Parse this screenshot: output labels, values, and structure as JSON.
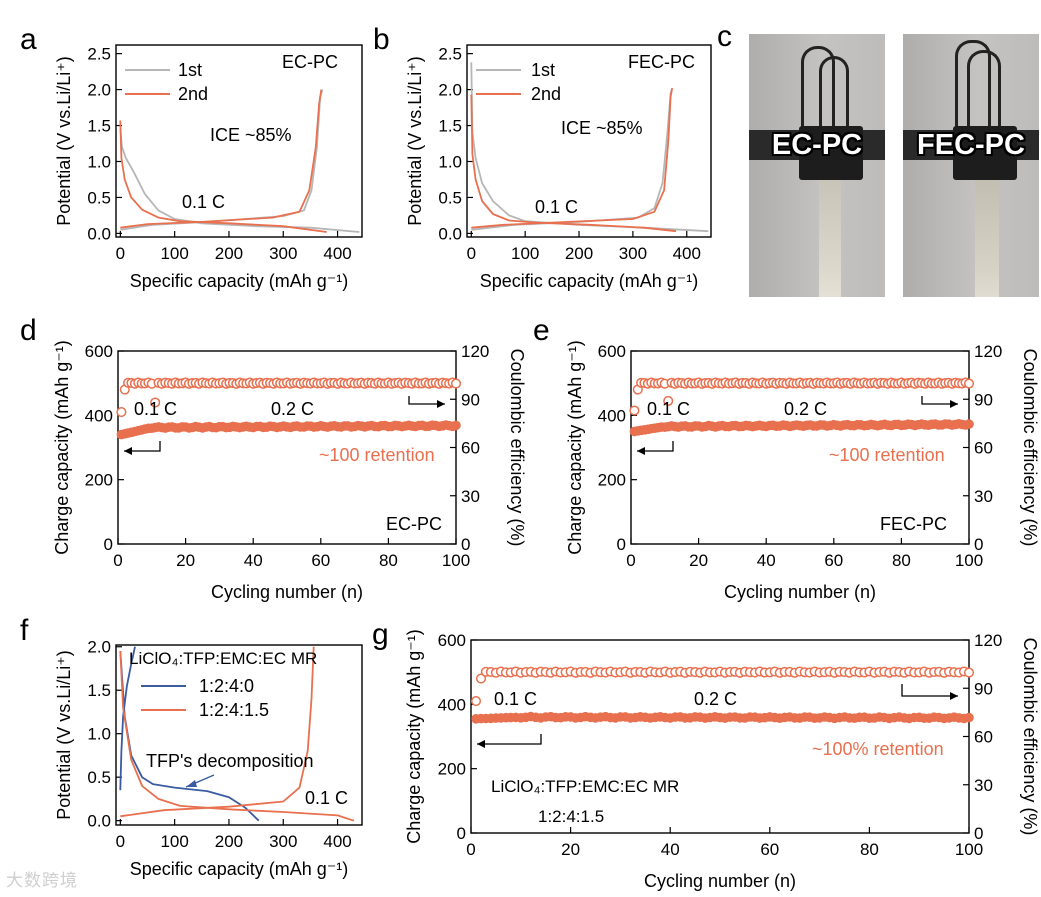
{
  "colors": {
    "orange": "#e8704f",
    "gray": "#b6b6b6",
    "blue": "#3a5ba0",
    "axis": "#000000"
  },
  "panel_labels": {
    "a": "a",
    "b": "b",
    "c": "c",
    "d": "d",
    "e": "e",
    "f": "f",
    "g": "g"
  },
  "photos": {
    "left_label": "EC-PC",
    "right_label": "FEC-PC"
  },
  "watermark": "大数跨境",
  "chart_data": [
    {
      "id": "a",
      "type": "line",
      "xlabel": "Specific capacity (mAh g⁻¹)",
      "ylabel": "Potential (V vs.Li/Li⁺)",
      "xlim": [
        -8,
        445
      ],
      "ylim": [
        -0.05,
        2.62
      ],
      "xticks": [
        0,
        100,
        200,
        300,
        400
      ],
      "yticks": [
        0.0,
        0.5,
        1.0,
        1.5,
        2.0,
        2.5
      ],
      "ytick_labels": [
        "0.0",
        "0.5",
        "1.0",
        "1.5",
        "2.0",
        "2.5"
      ],
      "legend": [
        {
          "name": "1st",
          "color": "#b6b6b6"
        },
        {
          "name": "2nd",
          "color": "#e8704f"
        }
      ],
      "annotations": [
        "EC-PC",
        "ICE  ~85%",
        "0.1 C"
      ],
      "series": [
        {
          "name": "1st discharge",
          "color": "#b6b6b6",
          "points": [
            [
              0,
              1.45
            ],
            [
              3,
              1.2
            ],
            [
              10,
              1.05
            ],
            [
              25,
              0.85
            ],
            [
              45,
              0.55
            ],
            [
              70,
              0.32
            ],
            [
              100,
              0.2
            ],
            [
              150,
              0.14
            ],
            [
              250,
              0.1
            ],
            [
              350,
              0.08
            ],
            [
              440,
              0.02
            ]
          ]
        },
        {
          "name": "1st charge",
          "color": "#b6b6b6",
          "points": [
            [
              0,
              0.05
            ],
            [
              60,
              0.12
            ],
            [
              160,
              0.16
            ],
            [
              300,
              0.24
            ],
            [
              338,
              0.32
            ],
            [
              352,
              0.6
            ],
            [
              362,
              1.2
            ],
            [
              368,
              1.9
            ],
            [
              372,
              2.0
            ]
          ]
        },
        {
          "name": "2nd discharge",
          "color": "#e8704f",
          "points": [
            [
              0,
              1.57
            ],
            [
              2,
              1.05
            ],
            [
              8,
              0.75
            ],
            [
              20,
              0.5
            ],
            [
              40,
              0.33
            ],
            [
              70,
              0.22
            ],
            [
              110,
              0.17
            ],
            [
              200,
              0.14
            ],
            [
              300,
              0.1
            ],
            [
              380,
              0.02
            ]
          ]
        },
        {
          "name": "2nd charge",
          "color": "#e8704f",
          "points": [
            [
              0,
              0.08
            ],
            [
              50,
              0.13
            ],
            [
              150,
              0.16
            ],
            [
              280,
              0.22
            ],
            [
              330,
              0.3
            ],
            [
              348,
              0.6
            ],
            [
              360,
              1.2
            ],
            [
              366,
              1.8
            ],
            [
              370,
              2.0
            ]
          ]
        }
      ]
    },
    {
      "id": "b",
      "type": "line",
      "xlabel": "Specific capacity (mAh g⁻¹)",
      "ylabel": "Potential (V vs.Li/Li⁺)",
      "xlim": [
        -8,
        445
      ],
      "ylim": [
        -0.05,
        2.62
      ],
      "xticks": [
        0,
        100,
        200,
        300,
        400
      ],
      "yticks": [
        0.0,
        0.5,
        1.0,
        1.5,
        2.0,
        2.5
      ],
      "ytick_labels": [
        "0.0",
        "0.5",
        "1.0",
        "1.5",
        "2.0",
        "2.5"
      ],
      "legend": [
        {
          "name": "1st",
          "color": "#b6b6b6"
        },
        {
          "name": "2nd",
          "color": "#e8704f"
        }
      ],
      "annotations": [
        "FEC-PC",
        "ICE  ~85%",
        "0.1 C"
      ],
      "series": [
        {
          "name": "1st discharge",
          "color": "#b6b6b6",
          "points": [
            [
              0,
              2.38
            ],
            [
              2,
              1.4
            ],
            [
              8,
              1.05
            ],
            [
              20,
              0.7
            ],
            [
              40,
              0.45
            ],
            [
              70,
              0.25
            ],
            [
              100,
              0.17
            ],
            [
              200,
              0.12
            ],
            [
              320,
              0.08
            ],
            [
              440,
              0.03
            ]
          ]
        },
        {
          "name": "1st charge",
          "color": "#b6b6b6",
          "points": [
            [
              0,
              0.05
            ],
            [
              80,
              0.12
            ],
            [
              200,
              0.16
            ],
            [
              310,
              0.22
            ],
            [
              340,
              0.35
            ],
            [
              355,
              0.7
            ],
            [
              364,
              1.4
            ],
            [
              370,
              1.95
            ],
            [
              372,
              2.0
            ]
          ]
        },
        {
          "name": "2nd discharge",
          "color": "#e8704f",
          "points": [
            [
              0,
              1.93
            ],
            [
              2,
              1.1
            ],
            [
              8,
              0.75
            ],
            [
              20,
              0.45
            ],
            [
              40,
              0.27
            ],
            [
              70,
              0.18
            ],
            [
              120,
              0.15
            ],
            [
              220,
              0.12
            ],
            [
              320,
              0.08
            ],
            [
              380,
              0.03
            ]
          ]
        },
        {
          "name": "2nd charge",
          "color": "#e8704f",
          "points": [
            [
              0,
              0.08
            ],
            [
              60,
              0.12
            ],
            [
              180,
              0.16
            ],
            [
              300,
              0.2
            ],
            [
              340,
              0.3
            ],
            [
              358,
              0.6
            ],
            [
              366,
              1.3
            ],
            [
              370,
              1.9
            ],
            [
              373,
              2.02
            ]
          ]
        }
      ]
    },
    {
      "id": "d",
      "type": "scatter",
      "xlabel": "Cycling number (n)",
      "ylabel": "Charge capacity (mAh g⁻¹)",
      "y2label": "Coulombic efficiency (%)",
      "xlim": [
        0,
        100
      ],
      "ylim": [
        0,
        600
      ],
      "y2lim": [
        0,
        120
      ],
      "xticks": [
        0,
        20,
        40,
        60,
        80,
        100
      ],
      "yticks": [
        0,
        200,
        400,
        600
      ],
      "y2ticks": [
        0,
        30,
        60,
        90,
        120
      ],
      "annotations": [
        "0.1 C",
        "0.2 C",
        "~100 retention",
        "EC-PC"
      ],
      "series": [
        {
          "name": "Charge capacity",
          "axis": "left",
          "marker": "filled",
          "color": "#e8704f",
          "start": 340,
          "plateau": 362,
          "end": 368
        },
        {
          "name": "Coulombic efficiency",
          "axis": "right",
          "marker": "open",
          "color": "#e8704f",
          "first": 82,
          "outlier": 88,
          "plateau": 100
        }
      ]
    },
    {
      "id": "e",
      "type": "scatter",
      "xlabel": "Cycling number (n)",
      "ylabel": "Charge capacity (mAh g⁻¹)",
      "y2label": "Coulombic efficiency (%)",
      "xlim": [
        0,
        100
      ],
      "ylim": [
        0,
        600
      ],
      "y2lim": [
        0,
        120
      ],
      "xticks": [
        0,
        20,
        40,
        60,
        80,
        100
      ],
      "yticks": [
        0,
        200,
        400,
        600
      ],
      "y2ticks": [
        0,
        30,
        60,
        90,
        120
      ],
      "annotations": [
        "0.1 C",
        "0.2 C",
        "~100 retention",
        "FEC-PC"
      ],
      "series": [
        {
          "name": "Charge capacity",
          "axis": "left",
          "marker": "filled",
          "color": "#e8704f",
          "start": 350,
          "plateau": 365,
          "end": 372
        },
        {
          "name": "Coulombic efficiency",
          "axis": "right",
          "marker": "open",
          "color": "#e8704f",
          "first": 83,
          "outlier": 89,
          "plateau": 100
        }
      ]
    },
    {
      "id": "f",
      "type": "line",
      "xlabel": "Specific capacity (mAh g⁻¹)",
      "ylabel": "Potential (V vs.Li/Li⁺)",
      "xlim": [
        -8,
        445
      ],
      "ylim": [
        -0.05,
        2.02
      ],
      "xticks": [
        0,
        100,
        200,
        300,
        400
      ],
      "yticks": [
        0.0,
        0.5,
        1.0,
        1.5,
        2.0
      ],
      "ytick_labels": [
        "0.0",
        "0.5",
        "1.0",
        "1.5",
        "2.0"
      ],
      "legend_title": "LiClO₄:TFP:EMC:EC MR",
      "legend": [
        {
          "name": "1:2:4:0",
          "color": "#3a5ba0"
        },
        {
          "name": "1:2:4:1.5",
          "color": "#e8704f"
        }
      ],
      "annotations": [
        "TFP's decomposition",
        "0.1 C"
      ],
      "series": [
        {
          "name": "1:2:4:0 discharge",
          "color": "#3a5ba0",
          "points": [
            [
              0,
              1.95
            ],
            [
              8,
              1.2
            ],
            [
              20,
              0.75
            ],
            [
              40,
              0.5
            ],
            [
              60,
              0.42
            ],
            [
              100,
              0.38
            ],
            [
              160,
              0.34
            ],
            [
              200,
              0.27
            ],
            [
              230,
              0.15
            ],
            [
              255,
              0.0
            ]
          ]
        },
        {
          "name": "1:2:4:0 charge",
          "color": "#3a5ba0",
          "points": [
            [
              0,
              0.35
            ],
            [
              2,
              0.8
            ],
            [
              5,
              1.2
            ],
            [
              12,
              1.55
            ],
            [
              20,
              1.8
            ],
            [
              27,
              2.0
            ]
          ]
        },
        {
          "name": "1:2:4:1.5 discharge",
          "color": "#e8704f",
          "points": [
            [
              0,
              1.95
            ],
            [
              5,
              1.3
            ],
            [
              20,
              0.7
            ],
            [
              40,
              0.4
            ],
            [
              70,
              0.25
            ],
            [
              110,
              0.17
            ],
            [
              200,
              0.13
            ],
            [
              300,
              0.1
            ],
            [
              400,
              0.06
            ],
            [
              430,
              0.0
            ]
          ]
        },
        {
          "name": "1:2:4:1.5 charge",
          "color": "#e8704f",
          "points": [
            [
              0,
              0.05
            ],
            [
              80,
              0.12
            ],
            [
              200,
              0.16
            ],
            [
              300,
              0.22
            ],
            [
              330,
              0.38
            ],
            [
              345,
              0.8
            ],
            [
              352,
              1.4
            ],
            [
              356,
              2.0
            ]
          ]
        }
      ]
    },
    {
      "id": "g",
      "type": "scatter",
      "xlabel": "Cycling number (n)",
      "ylabel": "Charge capacity (mAh g⁻¹)",
      "y2label": "Coulombic efficiency (%)",
      "xlim": [
        0,
        100
      ],
      "ylim": [
        0,
        600
      ],
      "y2lim": [
        0,
        120
      ],
      "xticks": [
        0,
        20,
        40,
        60,
        80,
        100
      ],
      "yticks": [
        0,
        200,
        400,
        600
      ],
      "y2ticks": [
        0,
        30,
        60,
        90,
        120
      ],
      "annotations": [
        "0.1 C",
        "0.2 C",
        "~100% retention",
        "LiClO₄:TFP:EMC:EC MR",
        "1:2:4:1.5"
      ],
      "series": [
        {
          "name": "Charge capacity",
          "axis": "left",
          "marker": "filled",
          "color": "#e8704f",
          "start": 355,
          "plateau": 360,
          "end": 358
        },
        {
          "name": "Coulombic efficiency",
          "axis": "right",
          "marker": "open",
          "color": "#e8704f",
          "first": 82,
          "plateau": 100
        }
      ]
    }
  ]
}
